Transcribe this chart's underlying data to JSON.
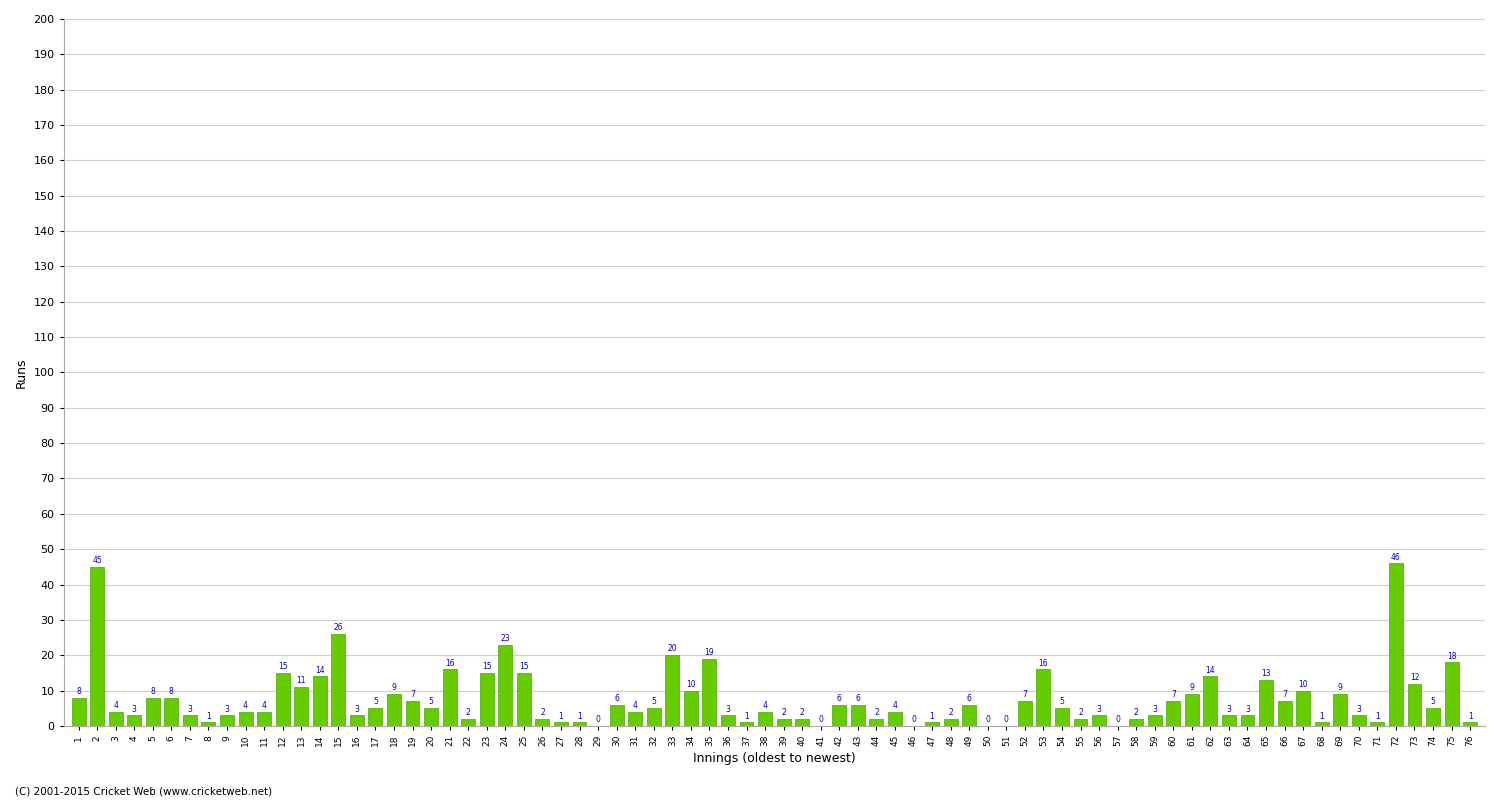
{
  "values": [
    8,
    45,
    4,
    3,
    8,
    8,
    3,
    1,
    3,
    4,
    4,
    15,
    11,
    14,
    26,
    3,
    5,
    9,
    7,
    5,
    16,
    2,
    15,
    23,
    15,
    2,
    1,
    1,
    0,
    6,
    4,
    5,
    20,
    10,
    19,
    3,
    1,
    4,
    2,
    2,
    0,
    6,
    6,
    2,
    4,
    0,
    1,
    2,
    6,
    0,
    0,
    7,
    16,
    5,
    2,
    3,
    0,
    2,
    3,
    7,
    9,
    14,
    3,
    3,
    13,
    7,
    10,
    1,
    9,
    3,
    1,
    46,
    12,
    5,
    18,
    1
  ],
  "labels": [
    "1",
    "2",
    "3",
    "4",
    "5",
    "6",
    "7",
    "8",
    "9",
    "10",
    "11",
    "12",
    "13",
    "14",
    "15",
    "16",
    "17",
    "18",
    "19",
    "20",
    "21",
    "22",
    "23",
    "24",
    "25",
    "26",
    "27",
    "28",
    "29",
    "30",
    "31",
    "32",
    "33",
    "34",
    "35",
    "36",
    "37",
    "38",
    "39",
    "40",
    "41",
    "42",
    "43",
    "44",
    "45",
    "46",
    "47",
    "48",
    "49",
    "50",
    "51",
    "52",
    "53",
    "54",
    "55",
    "56",
    "57",
    "58",
    "59",
    "60",
    "61",
    "62",
    "63",
    "64",
    "65",
    "66",
    "67",
    "68",
    "69",
    "70",
    "71",
    "72",
    "73",
    "74",
    "75",
    "76"
  ],
  "bar_color": "#66cc00",
  "bar_edge_color": "#44aa00",
  "label_color": "#0000cc",
  "ylabel": "Runs",
  "xlabel": "Innings (oldest to newest)",
  "ylim": [
    0,
    200
  ],
  "yticks": [
    0,
    10,
    20,
    30,
    40,
    50,
    60,
    70,
    80,
    90,
    100,
    110,
    120,
    130,
    140,
    150,
    160,
    170,
    180,
    190,
    200
  ],
  "bg_color": "#ffffff",
  "grid_color": "#d0d0d0",
  "footer": "(C) 2001-2015 Cricket Web (www.cricketweb.net)",
  "fig_width": 15.0,
  "fig_height": 8.0,
  "dpi": 100
}
